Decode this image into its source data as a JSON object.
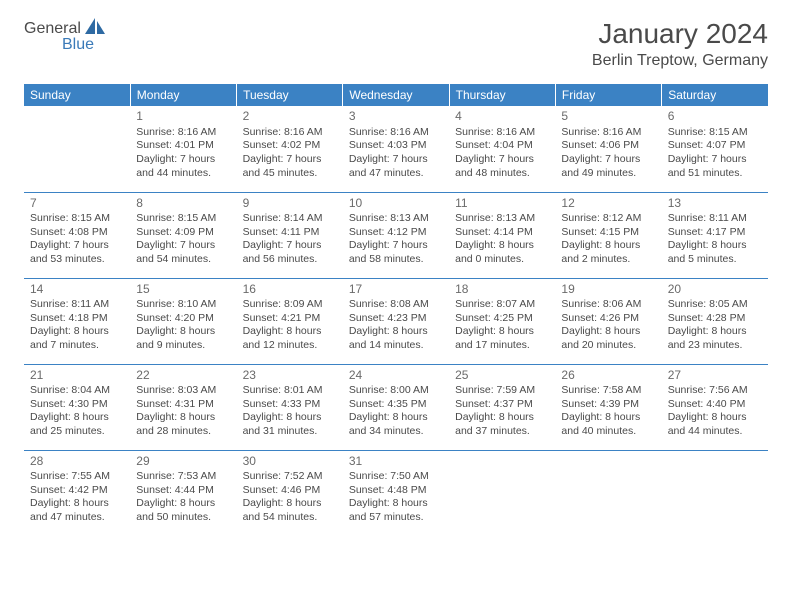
{
  "logo": {
    "text1": "General",
    "text2": "Blue"
  },
  "title": "January 2024",
  "location": "Berlin Treptow, Germany",
  "colors": {
    "header_bg": "#3b82c4",
    "header_text": "#ffffff",
    "rule": "#3b82c4",
    "text": "#4a4a4a",
    "logo_blue": "#3a7ab8"
  },
  "day_headers": [
    "Sunday",
    "Monday",
    "Tuesday",
    "Wednesday",
    "Thursday",
    "Friday",
    "Saturday"
  ],
  "weeks": [
    [
      {
        "n": "",
        "l": [
          "",
          "",
          "",
          ""
        ]
      },
      {
        "n": "1",
        "l": [
          "Sunrise: 8:16 AM",
          "Sunset: 4:01 PM",
          "Daylight: 7 hours",
          "and 44 minutes."
        ]
      },
      {
        "n": "2",
        "l": [
          "Sunrise: 8:16 AM",
          "Sunset: 4:02 PM",
          "Daylight: 7 hours",
          "and 45 minutes."
        ]
      },
      {
        "n": "3",
        "l": [
          "Sunrise: 8:16 AM",
          "Sunset: 4:03 PM",
          "Daylight: 7 hours",
          "and 47 minutes."
        ]
      },
      {
        "n": "4",
        "l": [
          "Sunrise: 8:16 AM",
          "Sunset: 4:04 PM",
          "Daylight: 7 hours",
          "and 48 minutes."
        ]
      },
      {
        "n": "5",
        "l": [
          "Sunrise: 8:16 AM",
          "Sunset: 4:06 PM",
          "Daylight: 7 hours",
          "and 49 minutes."
        ]
      },
      {
        "n": "6",
        "l": [
          "Sunrise: 8:15 AM",
          "Sunset: 4:07 PM",
          "Daylight: 7 hours",
          "and 51 minutes."
        ]
      }
    ],
    [
      {
        "n": "7",
        "l": [
          "Sunrise: 8:15 AM",
          "Sunset: 4:08 PM",
          "Daylight: 7 hours",
          "and 53 minutes."
        ]
      },
      {
        "n": "8",
        "l": [
          "Sunrise: 8:15 AM",
          "Sunset: 4:09 PM",
          "Daylight: 7 hours",
          "and 54 minutes."
        ]
      },
      {
        "n": "9",
        "l": [
          "Sunrise: 8:14 AM",
          "Sunset: 4:11 PM",
          "Daylight: 7 hours",
          "and 56 minutes."
        ]
      },
      {
        "n": "10",
        "l": [
          "Sunrise: 8:13 AM",
          "Sunset: 4:12 PM",
          "Daylight: 7 hours",
          "and 58 minutes."
        ]
      },
      {
        "n": "11",
        "l": [
          "Sunrise: 8:13 AM",
          "Sunset: 4:14 PM",
          "Daylight: 8 hours",
          "and 0 minutes."
        ]
      },
      {
        "n": "12",
        "l": [
          "Sunrise: 8:12 AM",
          "Sunset: 4:15 PM",
          "Daylight: 8 hours",
          "and 2 minutes."
        ]
      },
      {
        "n": "13",
        "l": [
          "Sunrise: 8:11 AM",
          "Sunset: 4:17 PM",
          "Daylight: 8 hours",
          "and 5 minutes."
        ]
      }
    ],
    [
      {
        "n": "14",
        "l": [
          "Sunrise: 8:11 AM",
          "Sunset: 4:18 PM",
          "Daylight: 8 hours",
          "and 7 minutes."
        ]
      },
      {
        "n": "15",
        "l": [
          "Sunrise: 8:10 AM",
          "Sunset: 4:20 PM",
          "Daylight: 8 hours",
          "and 9 minutes."
        ]
      },
      {
        "n": "16",
        "l": [
          "Sunrise: 8:09 AM",
          "Sunset: 4:21 PM",
          "Daylight: 8 hours",
          "and 12 minutes."
        ]
      },
      {
        "n": "17",
        "l": [
          "Sunrise: 8:08 AM",
          "Sunset: 4:23 PM",
          "Daylight: 8 hours",
          "and 14 minutes."
        ]
      },
      {
        "n": "18",
        "l": [
          "Sunrise: 8:07 AM",
          "Sunset: 4:25 PM",
          "Daylight: 8 hours",
          "and 17 minutes."
        ]
      },
      {
        "n": "19",
        "l": [
          "Sunrise: 8:06 AM",
          "Sunset: 4:26 PM",
          "Daylight: 8 hours",
          "and 20 minutes."
        ]
      },
      {
        "n": "20",
        "l": [
          "Sunrise: 8:05 AM",
          "Sunset: 4:28 PM",
          "Daylight: 8 hours",
          "and 23 minutes."
        ]
      }
    ],
    [
      {
        "n": "21",
        "l": [
          "Sunrise: 8:04 AM",
          "Sunset: 4:30 PM",
          "Daylight: 8 hours",
          "and 25 minutes."
        ]
      },
      {
        "n": "22",
        "l": [
          "Sunrise: 8:03 AM",
          "Sunset: 4:31 PM",
          "Daylight: 8 hours",
          "and 28 minutes."
        ]
      },
      {
        "n": "23",
        "l": [
          "Sunrise: 8:01 AM",
          "Sunset: 4:33 PM",
          "Daylight: 8 hours",
          "and 31 minutes."
        ]
      },
      {
        "n": "24",
        "l": [
          "Sunrise: 8:00 AM",
          "Sunset: 4:35 PM",
          "Daylight: 8 hours",
          "and 34 minutes."
        ]
      },
      {
        "n": "25",
        "l": [
          "Sunrise: 7:59 AM",
          "Sunset: 4:37 PM",
          "Daylight: 8 hours",
          "and 37 minutes."
        ]
      },
      {
        "n": "26",
        "l": [
          "Sunrise: 7:58 AM",
          "Sunset: 4:39 PM",
          "Daylight: 8 hours",
          "and 40 minutes."
        ]
      },
      {
        "n": "27",
        "l": [
          "Sunrise: 7:56 AM",
          "Sunset: 4:40 PM",
          "Daylight: 8 hours",
          "and 44 minutes."
        ]
      }
    ],
    [
      {
        "n": "28",
        "l": [
          "Sunrise: 7:55 AM",
          "Sunset: 4:42 PM",
          "Daylight: 8 hours",
          "and 47 minutes."
        ]
      },
      {
        "n": "29",
        "l": [
          "Sunrise: 7:53 AM",
          "Sunset: 4:44 PM",
          "Daylight: 8 hours",
          "and 50 minutes."
        ]
      },
      {
        "n": "30",
        "l": [
          "Sunrise: 7:52 AM",
          "Sunset: 4:46 PM",
          "Daylight: 8 hours",
          "and 54 minutes."
        ]
      },
      {
        "n": "31",
        "l": [
          "Sunrise: 7:50 AM",
          "Sunset: 4:48 PM",
          "Daylight: 8 hours",
          "and 57 minutes."
        ]
      },
      {
        "n": "",
        "l": [
          "",
          "",
          "",
          ""
        ]
      },
      {
        "n": "",
        "l": [
          "",
          "",
          "",
          ""
        ]
      },
      {
        "n": "",
        "l": [
          "",
          "",
          "",
          ""
        ]
      }
    ]
  ]
}
